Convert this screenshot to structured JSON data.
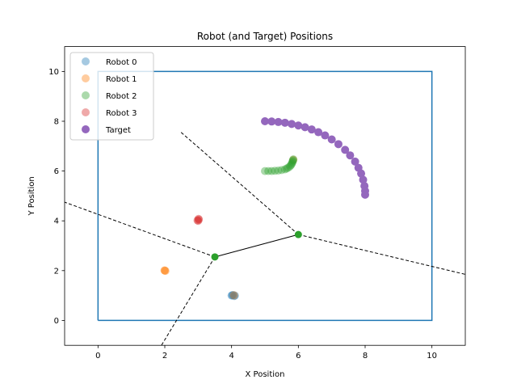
{
  "chart_data": {
    "type": "scatter",
    "title": "Robot (and Target) Positions",
    "xlabel": "X Position",
    "ylabel": "Y Position",
    "xlim": [
      -1,
      11
    ],
    "ylim": [
      -1,
      11
    ],
    "xticks": [
      0,
      2,
      4,
      6,
      8,
      10
    ],
    "yticks": [
      0,
      2,
      4,
      6,
      8,
      10
    ],
    "grid": false,
    "legend_position": "top-left",
    "boundary": {
      "x": [
        0,
        10,
        10,
        0,
        0
      ],
      "y": [
        0,
        0,
        10,
        10,
        0
      ],
      "color": "#1f77b4"
    },
    "series": [
      {
        "name": "Robot 0",
        "color": "#1f77b4",
        "alpha": 0.4,
        "x": [
          4.0,
          4.05,
          4.1,
          4.08,
          4.02
        ],
        "y": [
          1.0,
          1.02,
          1.0,
          0.98,
          1.01
        ]
      },
      {
        "name": "Robot 1",
        "color": "#ff7f0e",
        "alpha": 0.4,
        "x": [
          2.0,
          2.02,
          1.99,
          4.07,
          5.85
        ],
        "y": [
          2.0,
          1.99,
          2.01,
          1.01,
          6.45
        ]
      },
      {
        "name": "Robot 2",
        "color": "#2ca02c",
        "alpha": 0.4,
        "x": [
          5.0,
          5.1,
          5.2,
          5.3,
          5.4,
          5.5,
          5.6,
          5.65,
          5.7,
          5.75,
          5.78,
          5.8,
          5.82,
          5.83,
          5.84,
          5.85
        ],
        "y": [
          6.0,
          6.0,
          6.0,
          6.01,
          6.02,
          6.04,
          6.07,
          6.1,
          6.14,
          6.19,
          6.24,
          6.29,
          6.34,
          6.39,
          6.43,
          6.47
        ]
      },
      {
        "name": "Robot 3",
        "color": "#d62728",
        "alpha": 0.4,
        "x": [
          3.0,
          3.02,
          2.98,
          3.01
        ],
        "y": [
          4.0,
          4.05,
          4.02,
          4.08
        ]
      },
      {
        "name": "Target",
        "color": "#9467bd",
        "alpha": 1.0,
        "x": [
          5.0,
          5.2,
          5.4,
          5.6,
          5.8,
          6.0,
          6.2,
          6.4,
          6.6,
          6.8,
          7.0,
          7.2,
          7.4,
          7.55,
          7.7,
          7.8,
          7.88,
          7.94,
          7.98,
          8.0,
          8.0
        ],
        "y": [
          8.0,
          7.99,
          7.97,
          7.94,
          7.89,
          7.83,
          7.76,
          7.67,
          7.56,
          7.43,
          7.27,
          7.08,
          6.85,
          6.63,
          6.38,
          6.13,
          5.9,
          5.65,
          5.4,
          5.2,
          5.05
        ]
      }
    ],
    "voronoi_vertices": {
      "color": "#2ca02c",
      "x": [
        3.5,
        6.0
      ],
      "y": [
        2.55,
        3.45
      ]
    },
    "voronoi_solid": [
      {
        "x": [
          3.5,
          6.0
        ],
        "y": [
          2.55,
          3.45
        ]
      }
    ],
    "voronoi_dashed": [
      {
        "x": [
          3.5,
          -1.0
        ],
        "y": [
          2.55,
          4.75
        ]
      },
      {
        "x": [
          3.5,
          1.9
        ],
        "y": [
          2.55,
          -1.0
        ]
      },
      {
        "x": [
          6.0,
          2.45
        ],
        "y": [
          3.45,
          7.6
        ]
      },
      {
        "x": [
          6.0,
          11.0
        ],
        "y": [
          3.45,
          1.85
        ]
      }
    ]
  }
}
